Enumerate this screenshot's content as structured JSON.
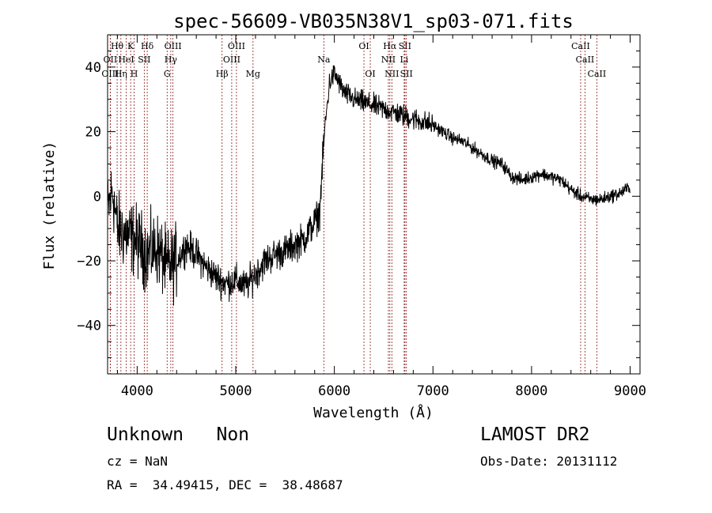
{
  "chart_data": {
    "type": "line",
    "title": "spec-56609-VB035N38V1_sp03-071.fits",
    "xlabel": "Wavelength (Å)",
    "ylabel": "Flux (relative)",
    "xlim": [
      3700,
      9100
    ],
    "ylim": [
      -55,
      50
    ],
    "xticks": [
      4000,
      5000,
      6000,
      7000,
      8000,
      9000
    ],
    "yticks": [
      -40,
      -20,
      0,
      20,
      40
    ],
    "xtick_labels": [
      "4000",
      "5000",
      "6000",
      "7000",
      "8000",
      "9000"
    ],
    "ytick_labels": [
      "−40",
      "−20",
      "0",
      "20",
      "40"
    ],
    "grid": false,
    "line_color": "#000000",
    "marker_color": "#8b1a1a",
    "spectrum_anchors": {
      "x": [
        3700,
        3750,
        3800,
        3900,
        4000,
        4100,
        4200,
        4300,
        4400,
        4500,
        4600,
        4700,
        4800,
        4900,
        5000,
        5100,
        5200,
        5300,
        5400,
        5500,
        5600,
        5700,
        5800,
        5850,
        5900,
        5950,
        6000,
        6100,
        6200,
        6300,
        6400,
        6500,
        6600,
        6700,
        6800,
        6900,
        7000,
        7100,
        7200,
        7300,
        7400,
        7500,
        7600,
        7700,
        7800,
        7900,
        8000,
        8100,
        8200,
        8300,
        8400,
        8500,
        8600,
        8700,
        8800,
        8900,
        9000
      ],
      "y": [
        -5,
        2,
        -10,
        -12,
        -14,
        -18,
        -16,
        -22,
        -20,
        -15,
        -18,
        -22,
        -25,
        -27,
        -26,
        -28,
        -24,
        -20,
        -18,
        -17,
        -15,
        -13,
        -8,
        -5,
        20,
        35,
        38,
        32,
        30,
        29,
        28,
        27,
        26,
        25,
        24,
        23,
        22,
        20,
        18,
        17,
        15,
        13,
        11,
        10,
        6,
        5,
        6,
        7,
        6,
        5,
        2,
        0,
        -1,
        -1,
        0,
        1,
        3
      ]
    },
    "line_markers": [
      {
        "label": "Hθ",
        "x": 3797,
        "row": 0
      },
      {
        "label": "OII",
        "x": 3727,
        "row": 1
      },
      {
        "label": "OIII",
        "x": 3727,
        "row": 2
      },
      {
        "label": "HeI",
        "x": 3889,
        "row": 1
      },
      {
        "label": "Hη",
        "x": 3835,
        "row": 2
      },
      {
        "label": "K",
        "x": 3934,
        "row": 0
      },
      {
        "label": "H",
        "x": 3969,
        "row": 2
      },
      {
        "label": "SII",
        "x": 4072,
        "row": 1
      },
      {
        "label": "Hδ",
        "x": 4102,
        "row": 0
      },
      {
        "label": "OIII",
        "x": 4363,
        "row": 0
      },
      {
        "label": "Hγ",
        "x": 4341,
        "row": 1
      },
      {
        "label": "G",
        "x": 4304,
        "row": 2
      },
      {
        "label": "Hβ",
        "x": 4861,
        "row": 2
      },
      {
        "label": "OIII",
        "x": 4959,
        "row": 1
      },
      {
        "label": "OIII",
        "x": 5007,
        "row": 0
      },
      {
        "label": "Mg",
        "x": 5175,
        "row": 2
      },
      {
        "label": "Na",
        "x": 5893,
        "row": 1
      },
      {
        "label": "OI",
        "x": 6300,
        "row": 0
      },
      {
        "label": "OI",
        "x": 6364,
        "row": 2
      },
      {
        "label": "Hα",
        "x": 6563,
        "row": 0
      },
      {
        "label": "NII",
        "x": 6548,
        "row": 1
      },
      {
        "label": "NII",
        "x": 6583,
        "row": 2
      },
      {
        "label": "SII",
        "x": 6716,
        "row": 0
      },
      {
        "label": "Li",
        "x": 6708,
        "row": 1
      },
      {
        "label": "SII",
        "x": 6731,
        "row": 2
      },
      {
        "label": "CaII",
        "x": 8498,
        "row": 0
      },
      {
        "label": "CaII",
        "x": 8542,
        "row": 1
      },
      {
        "label": "CaII",
        "x": 8662,
        "row": 2
      }
    ]
  },
  "info": {
    "class_text": "Unknown   Non",
    "survey": "LAMOST DR2",
    "cz": "cz = NaN",
    "obs_date": "Obs-Date: 20131112",
    "radec": "RA =  34.49415, DEC =  38.48687"
  }
}
